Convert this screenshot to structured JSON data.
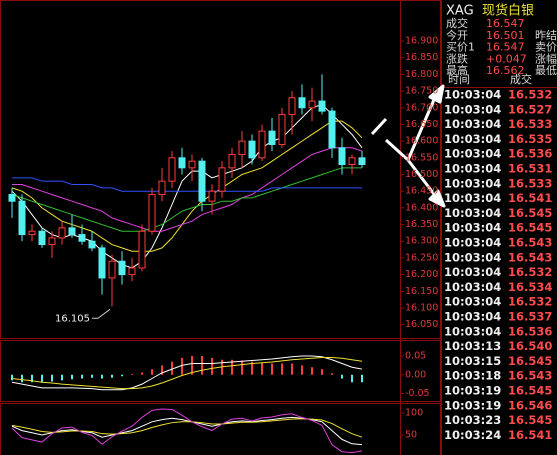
{
  "quote": {
    "symbol": "XAG",
    "name": "现货白银",
    "rows": [
      [
        "成交",
        "16.547"
      ],
      [
        "今开",
        "16.501",
        "昨结"
      ],
      [
        "买价1",
        "16.547",
        "卖价"
      ],
      [
        "涨跌",
        "+0.047",
        "涨幅"
      ],
      [
        "最高",
        "16.562",
        "最低"
      ]
    ]
  },
  "trades": {
    "header": [
      "时间",
      "成交"
    ],
    "rows": [
      [
        "10:03:04",
        "16.532"
      ],
      [
        "10:03:04",
        "16.527"
      ],
      [
        "10:03:04",
        "16.533"
      ],
      [
        "10:03:04",
        "16.535"
      ],
      [
        "10:03:04",
        "16.536"
      ],
      [
        "10:03:04",
        "16.531"
      ],
      [
        "10:03:04",
        "16.533"
      ],
      [
        "10:03:04",
        "16.541"
      ],
      [
        "10:03:04",
        "16.545"
      ],
      [
        "10:03:04",
        "16.545"
      ],
      [
        "10:03:04",
        "16.543"
      ],
      [
        "10:03:04",
        "16.543"
      ],
      [
        "10:03:04",
        "16.532"
      ],
      [
        "10:03:04",
        "16.534"
      ],
      [
        "10:03:04",
        "16.532"
      ],
      [
        "10:03:04",
        "16.537"
      ],
      [
        "10:03:04",
        "16.536"
      ],
      [
        "10:03:13",
        "16.540"
      ],
      [
        "10:03:15",
        "16.545"
      ],
      [
        "10:03:18",
        "16.543"
      ],
      [
        "10:03:19",
        "16.545"
      ],
      [
        "10:03:19",
        "16.546"
      ],
      [
        "10:03:23",
        "16.545"
      ],
      [
        "10:03:24",
        "16.541"
      ]
    ]
  },
  "chart_data": [
    {
      "type": "candlestick",
      "up_color": "#ff3c3c",
      "down_color": "#54f0f0",
      "open": [
        16.44,
        16.42,
        16.32,
        16.33,
        16.29,
        16.31,
        16.34,
        16.32,
        16.3,
        16.28,
        16.19,
        16.24,
        16.2,
        16.22,
        16.33,
        16.44,
        16.48,
        16.55,
        16.52,
        16.54,
        16.42,
        16.45,
        16.52,
        16.56,
        16.6,
        16.55,
        16.63,
        16.59,
        16.68,
        16.73,
        16.7,
        16.72,
        16.69,
        16.58,
        16.53,
        16.55
      ],
      "high": [
        16.46,
        16.44,
        16.35,
        16.34,
        16.33,
        16.36,
        16.38,
        16.35,
        16.33,
        16.29,
        16.26,
        16.27,
        16.25,
        16.35,
        16.46,
        16.52,
        16.57,
        16.58,
        16.56,
        16.55,
        16.47,
        16.54,
        16.58,
        16.63,
        16.62,
        16.65,
        16.67,
        16.7,
        16.75,
        16.77,
        16.76,
        16.8,
        16.7,
        16.61,
        16.56,
        16.57
      ],
      "low": [
        16.37,
        16.3,
        16.3,
        16.28,
        16.25,
        16.29,
        16.31,
        16.29,
        16.27,
        16.14,
        16.105,
        16.17,
        16.18,
        16.21,
        16.32,
        16.42,
        16.46,
        16.5,
        16.48,
        16.39,
        16.38,
        16.43,
        16.49,
        16.52,
        16.53,
        16.54,
        16.57,
        16.58,
        16.62,
        16.68,
        16.66,
        16.68,
        16.55,
        16.5,
        16.5,
        16.52
      ],
      "close": [
        16.42,
        16.32,
        16.33,
        16.29,
        16.31,
        16.34,
        16.32,
        16.3,
        16.28,
        16.19,
        16.24,
        16.2,
        16.22,
        16.33,
        16.44,
        16.48,
        16.55,
        16.52,
        16.54,
        16.42,
        16.45,
        16.52,
        16.56,
        16.6,
        16.55,
        16.63,
        16.59,
        16.68,
        16.73,
        16.7,
        16.72,
        16.69,
        16.58,
        16.53,
        16.55,
        16.53
      ],
      "lines": [
        {
          "color": "#ffffff",
          "values": [
            16.45,
            16.42,
            16.38,
            16.34,
            16.32,
            16.31,
            16.32,
            16.31,
            16.3,
            16.27,
            16.25,
            16.23,
            16.22,
            16.24,
            16.28,
            16.34,
            16.41,
            16.48,
            16.51,
            16.51,
            16.49,
            16.5,
            16.51,
            16.52,
            16.54,
            16.58,
            16.6,
            16.61,
            16.64,
            16.67,
            16.7,
            16.71,
            16.68,
            16.65,
            16.62,
            16.58
          ]
        },
        {
          "color": "#f0e030",
          "values": [
            16.46,
            16.45,
            16.43,
            16.4,
            16.38,
            16.36,
            16.35,
            16.34,
            16.33,
            16.31,
            16.29,
            16.28,
            16.27,
            16.27,
            16.27,
            16.28,
            16.31,
            16.35,
            16.39,
            16.42,
            16.44,
            16.46,
            16.48,
            16.5,
            16.51,
            16.52,
            16.54,
            16.56,
            16.58,
            16.6,
            16.62,
            16.64,
            16.66,
            16.66,
            16.64,
            16.61
          ]
        },
        {
          "color": "#e040e0",
          "values": [
            16.47,
            16.47,
            16.46,
            16.45,
            16.44,
            16.43,
            16.42,
            16.41,
            16.4,
            16.39,
            16.37,
            16.36,
            16.35,
            16.34,
            16.33,
            16.33,
            16.34,
            16.35,
            16.36,
            16.38,
            16.39,
            16.4,
            16.41,
            16.43,
            16.44,
            16.46,
            16.48,
            16.5,
            16.52,
            16.54,
            16.56,
            16.57,
            16.58,
            16.58,
            16.58,
            16.57
          ]
        },
        {
          "color": "#30c030",
          "values": [
            16.44,
            16.43,
            16.42,
            16.41,
            16.4,
            16.39,
            16.38,
            16.37,
            16.36,
            16.35,
            16.34,
            16.33,
            16.33,
            16.33,
            16.34,
            16.35,
            16.37,
            16.39,
            16.4,
            16.41,
            16.41,
            16.42,
            16.42,
            16.43,
            16.43,
            16.44,
            16.45,
            16.46,
            16.47,
            16.48,
            16.49,
            16.5,
            16.51,
            16.52,
            16.52,
            16.52
          ]
        },
        {
          "color": "#3050ff",
          "values": [
            16.49,
            16.49,
            16.49,
            16.48,
            16.48,
            16.48,
            16.47,
            16.47,
            16.47,
            16.46,
            16.46,
            16.45,
            16.45,
            16.45,
            16.45,
            16.45,
            16.45,
            16.45,
            16.45,
            16.45,
            16.45,
            16.45,
            16.45,
            16.45,
            16.45,
            16.45,
            16.46,
            16.46,
            16.46,
            16.46,
            16.46,
            16.46,
            16.46,
            16.46,
            16.46,
            16.46
          ]
        }
      ],
      "ylim": [
        16.01,
        17.02
      ],
      "yticks": [
        {
          "value": 16.9,
          "label": "16.900"
        },
        {
          "value": 16.85,
          "label": "16.850"
        },
        {
          "value": 16.8,
          "label": "16.800"
        },
        {
          "value": 16.75,
          "label": "16.750"
        },
        {
          "value": 16.7,
          "label": "16.700"
        },
        {
          "value": 16.65,
          "label": "16.650"
        },
        {
          "value": 16.6,
          "label": "16.600"
        },
        {
          "value": 16.55,
          "label": "16.550"
        },
        {
          "value": 16.5,
          "label": "16.500"
        },
        {
          "value": 16.45,
          "label": "16.450"
        },
        {
          "value": 16.4,
          "label": "16.400"
        },
        {
          "value": 16.35,
          "label": "16.350"
        },
        {
          "value": 16.3,
          "label": "16.300"
        },
        {
          "value": 16.25,
          "label": "16.250"
        },
        {
          "value": 16.2,
          "label": "16.200"
        },
        {
          "value": 16.15,
          "label": "16.150"
        },
        {
          "value": 16.1,
          "label": "16.100"
        },
        {
          "value": 16.05,
          "label": "16.050"
        }
      ]
    },
    {
      "type": "macd",
      "up_color": "#ff3c3c",
      "down_color": "#54f0f0",
      "values": [
        -0.015,
        -0.02,
        -0.02,
        -0.02,
        -0.018,
        -0.015,
        -0.012,
        -0.01,
        -0.008,
        -0.01,
        -0.008,
        -0.004,
        0.002,
        0.006,
        0.015,
        0.025,
        0.035,
        0.045,
        0.05,
        0.05,
        0.045,
        0.04,
        0.04,
        0.038,
        0.035,
        0.032,
        0.03,
        0.03,
        0.03,
        0.025,
        0.02,
        0.015,
        0.004,
        -0.01,
        -0.02,
        -0.02
      ],
      "lines": [
        {
          "color": "#ffffff",
          "values": [
            -0.02,
            -0.025,
            -0.03,
            -0.035,
            -0.035,
            -0.035,
            -0.035,
            -0.036,
            -0.037,
            -0.04,
            -0.04,
            -0.04,
            -0.035,
            -0.025,
            -0.01,
            0.005,
            0.015,
            0.025,
            0.03,
            0.03,
            0.03,
            0.032,
            0.034,
            0.036,
            0.038,
            0.04,
            0.042,
            0.045,
            0.048,
            0.05,
            0.05,
            0.048,
            0.04,
            0.03,
            0.02,
            0.015
          ]
        },
        {
          "color": "#f0e030",
          "values": [
            -0.01,
            -0.013,
            -0.016,
            -0.02,
            -0.022,
            -0.025,
            -0.027,
            -0.029,
            -0.031,
            -0.033,
            -0.035,
            -0.037,
            -0.037,
            -0.035,
            -0.03,
            -0.022,
            -0.012,
            -0.002,
            0.006,
            0.012,
            0.017,
            0.021,
            0.024,
            0.027,
            0.03,
            0.032,
            0.034,
            0.037,
            0.04,
            0.042,
            0.044,
            0.046,
            0.046,
            0.044,
            0.04,
            0.036
          ]
        }
      ],
      "ylim": [
        -0.07,
        0.09
      ],
      "yticks": [
        0.05,
        {
          "value": 0,
          "label": "0.00"
        },
        -0.05
      ]
    },
    {
      "type": "kdj",
      "lines": [
        {
          "color": "#ffffff",
          "values": [
            70,
            60,
            55,
            50,
            55,
            60,
            62,
            58,
            55,
            45,
            50,
            55,
            60,
            70,
            80,
            85,
            88,
            85,
            80,
            75,
            70,
            75,
            80,
            82,
            80,
            83,
            85,
            88,
            90,
            88,
            85,
            80,
            60,
            40,
            30,
            28
          ]
        },
        {
          "color": "#f0e030",
          "values": [
            72,
            68,
            63,
            58,
            56,
            57,
            59,
            59,
            58,
            53,
            52,
            53,
            55,
            60,
            67,
            73,
            78,
            80,
            80,
            78,
            75,
            75,
            77,
            79,
            79,
            80,
            82,
            84,
            86,
            87,
            86,
            84,
            76,
            64,
            53,
            45
          ]
        },
        {
          "color": "#e040e0",
          "values": [
            66,
            44,
            39,
            34,
            53,
            66,
            68,
            56,
            49,
            29,
            46,
            59,
            70,
            90,
            106,
            109,
            108,
            95,
            80,
            69,
            60,
            75,
            86,
            88,
            82,
            89,
            91,
            96,
            98,
            90,
            83,
            72,
            28,
            12,
            10,
            14
          ]
        }
      ],
      "ylim": [
        4.5,
        120.5
      ],
      "yticks": [
        100,
        50
      ]
    }
  ]
}
